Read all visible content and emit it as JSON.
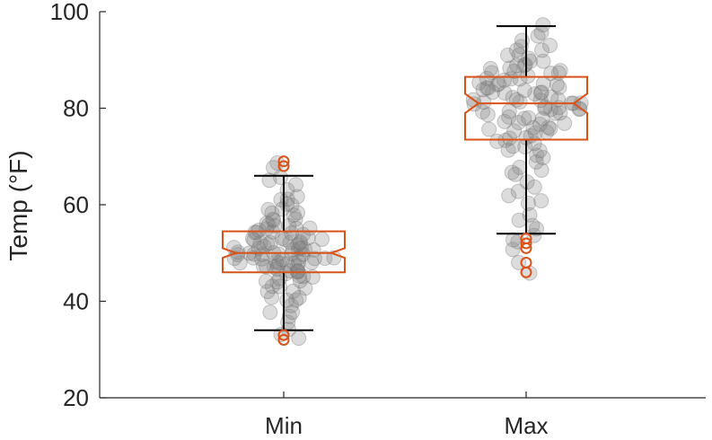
{
  "chart_data": {
    "type": "box",
    "title": "",
    "xlabel": "",
    "ylabel": "Temp (°F)",
    "ylim": [
      20,
      100
    ],
    "yticks": [
      20,
      40,
      60,
      80,
      100
    ],
    "categories": [
      "Min",
      "Max"
    ],
    "grid": false,
    "colors": {
      "box": "#D95319",
      "whisker": "#000000",
      "points": "#808080",
      "axis": "#262626"
    },
    "boxes": [
      {
        "category": "Min",
        "q1": 46,
        "median": 50,
        "q3": 54.5,
        "notch_low": 49,
        "notch_high": 51,
        "whisker_low": 34,
        "whisker_high": 66,
        "outliers": [
          32,
          33,
          68,
          69
        ]
      },
      {
        "category": "Max",
        "q1": 73.5,
        "median": 81,
        "q3": 86.5,
        "notch_low": 79,
        "notch_high": 83,
        "whisker_low": 54,
        "whisker_high": 97,
        "outliers": [
          46,
          48,
          51,
          52,
          53
        ]
      }
    ],
    "swarm_points": [
      {
        "category": "Min",
        "values": [
          34,
          36,
          37,
          38,
          38,
          39,
          40,
          40,
          41,
          41,
          42,
          42,
          43,
          43,
          43,
          44,
          44,
          44,
          45,
          45,
          45,
          45,
          46,
          46,
          46,
          46,
          46,
          47,
          47,
          47,
          47,
          47,
          47,
          48,
          48,
          48,
          48,
          48,
          48,
          48,
          49,
          49,
          49,
          49,
          49,
          49,
          49,
          49,
          50,
          50,
          50,
          50,
          50,
          50,
          50,
          50,
          50,
          51,
          51,
          51,
          51,
          51,
          51,
          51,
          51,
          52,
          52,
          52,
          52,
          52,
          52,
          52,
          53,
          53,
          53,
          53,
          53,
          53,
          54,
          54,
          54,
          54,
          54,
          55,
          55,
          55,
          55,
          56,
          56,
          56,
          56,
          57,
          57,
          57,
          58,
          58,
          58,
          59,
          59,
          60,
          60,
          61,
          61,
          62,
          63,
          64,
          65,
          66,
          32,
          33,
          68,
          69
        ]
      },
      {
        "category": "Max",
        "values": [
          54,
          55,
          56,
          57,
          58,
          60,
          61,
          62,
          63,
          64,
          65,
          66,
          67,
          67,
          68,
          69,
          70,
          70,
          71,
          71,
          72,
          72,
          73,
          73,
          73,
          74,
          74,
          74,
          75,
          75,
          75,
          76,
          76,
          76,
          76,
          77,
          77,
          77,
          77,
          78,
          78,
          78,
          78,
          79,
          79,
          79,
          79,
          79,
          80,
          80,
          80,
          80,
          80,
          80,
          81,
          81,
          81,
          81,
          81,
          81,
          82,
          82,
          82,
          82,
          82,
          82,
          83,
          83,
          83,
          83,
          83,
          84,
          84,
          84,
          84,
          84,
          85,
          85,
          85,
          85,
          85,
          86,
          86,
          86,
          86,
          87,
          87,
          87,
          87,
          88,
          88,
          88,
          88,
          89,
          89,
          89,
          90,
          90,
          90,
          91,
          91,
          92,
          92,
          93,
          93,
          94,
          95,
          96,
          97,
          46,
          48,
          51,
          52,
          53
        ]
      }
    ]
  }
}
